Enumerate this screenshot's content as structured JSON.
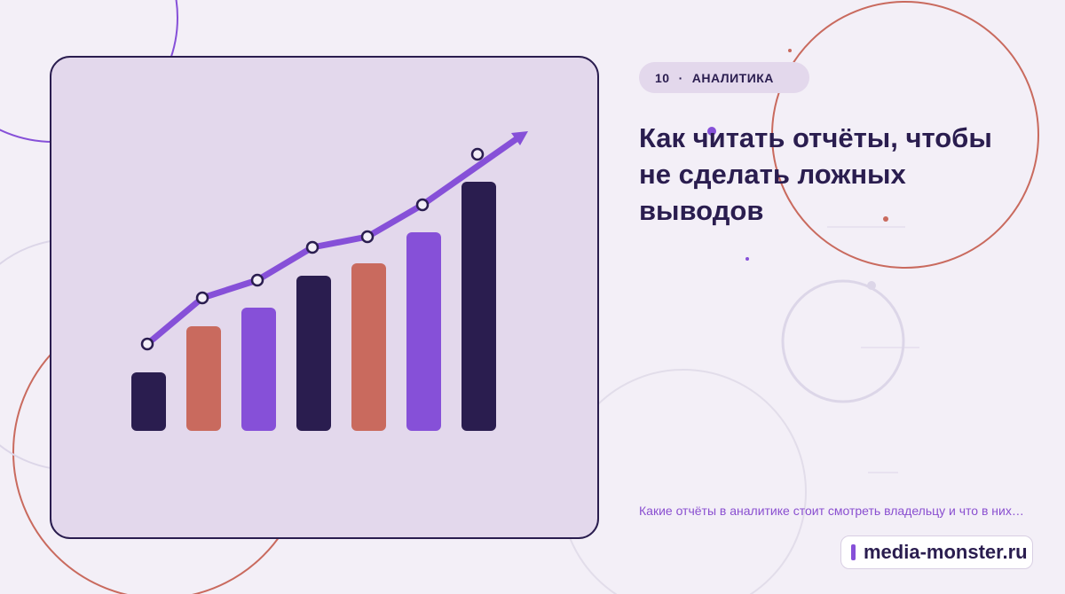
{
  "badge": {
    "number": "10",
    "separator": "·",
    "category": "АНАЛИТИКА"
  },
  "title": "Как читать отчёты, чтобы не сделать ложных выводов",
  "description": "Какие отчёты в аналитике стоит смотреть владельцу и что в них…",
  "site": "media-monster.ru"
}
